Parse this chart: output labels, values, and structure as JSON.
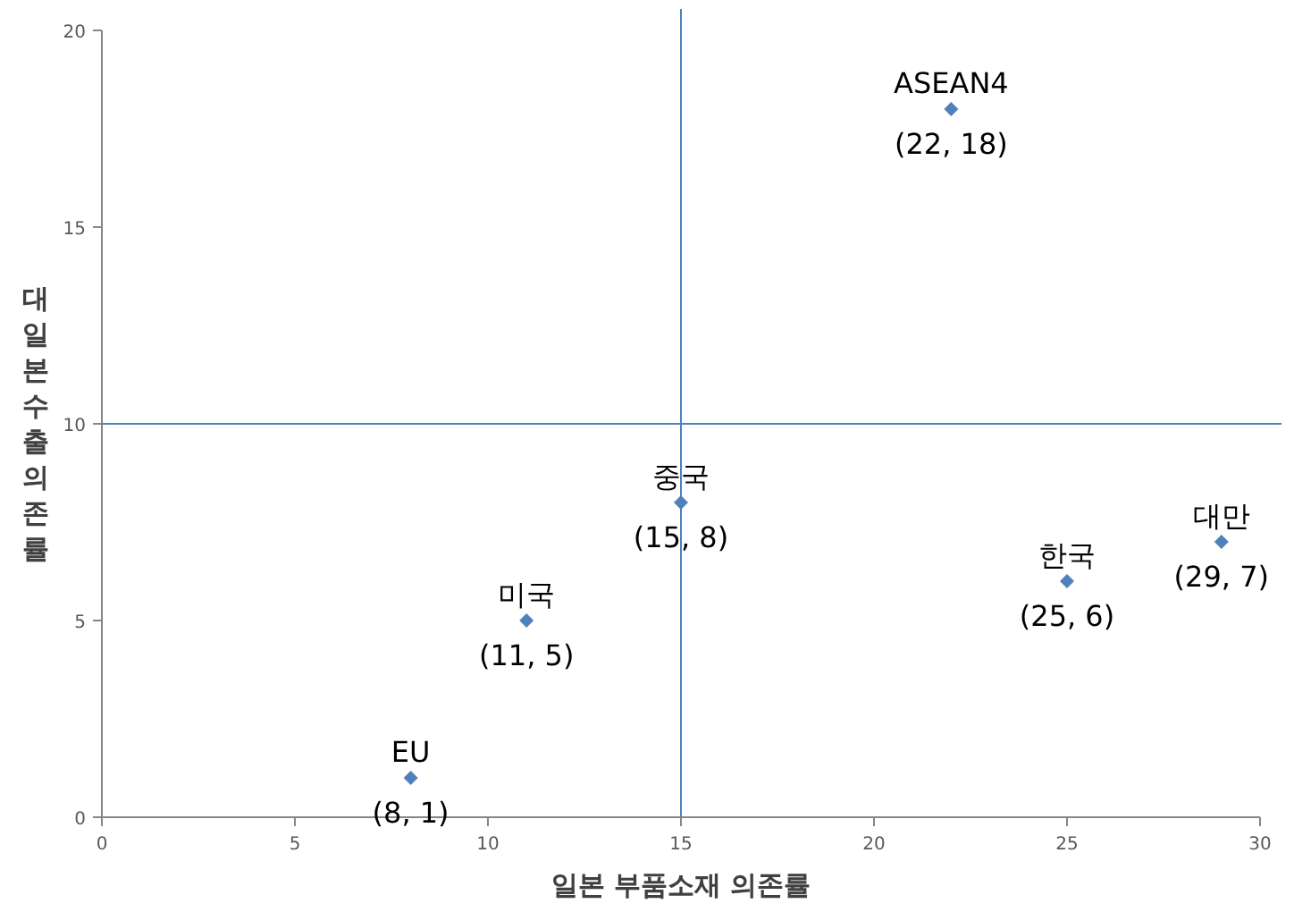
{
  "chart_data": {
    "type": "scatter",
    "xlabel": "일본 부품소재 의존률",
    "ylabel": "대일본수출의존률",
    "series": [
      {
        "color": "#4f81bd",
        "x": [
          8,
          11,
          15,
          22,
          25,
          29
        ],
        "values": [
          1,
          5,
          8,
          18,
          6,
          7
        ]
      }
    ],
    "marker": "diamond",
    "xlim": [
      0,
      30
    ],
    "xticks": [
      0,
      5,
      10,
      15,
      20,
      25,
      30
    ],
    "ylim": [
      0,
      20
    ],
    "yticks": [
      0,
      5,
      10,
      15,
      20
    ],
    "ref_lines": [
      {
        "axis": "x",
        "value": 15,
        "color": "#4f81bd"
      },
      {
        "axis": "y",
        "value": 10,
        "color": "#4f81bd"
      }
    ],
    "annotations": [
      {
        "text": "EU",
        "x": 8,
        "y": 1
      },
      {
        "text": "(8, 1)",
        "x": 8,
        "y": 1
      },
      {
        "text": "미국",
        "x": 11,
        "y": 5
      },
      {
        "text": "(11, 5)",
        "x": 11,
        "y": 5
      },
      {
        "text": "중국",
        "x": 15,
        "y": 8
      },
      {
        "text": "(15, 8)",
        "x": 15,
        "y": 8
      },
      {
        "text": "ASEAN4",
        "x": 22,
        "y": 18
      },
      {
        "text": "(22, 18)",
        "x": 22,
        "y": 18
      },
      {
        "text": "한국",
        "x": 25,
        "y": 6
      },
      {
        "text": "(25, 6)",
        "x": 25,
        "y": 6
      },
      {
        "text": "대만",
        "x": 29,
        "y": 7
      },
      {
        "text": "(29, 7)",
        "x": 29,
        "y": 7
      }
    ]
  }
}
